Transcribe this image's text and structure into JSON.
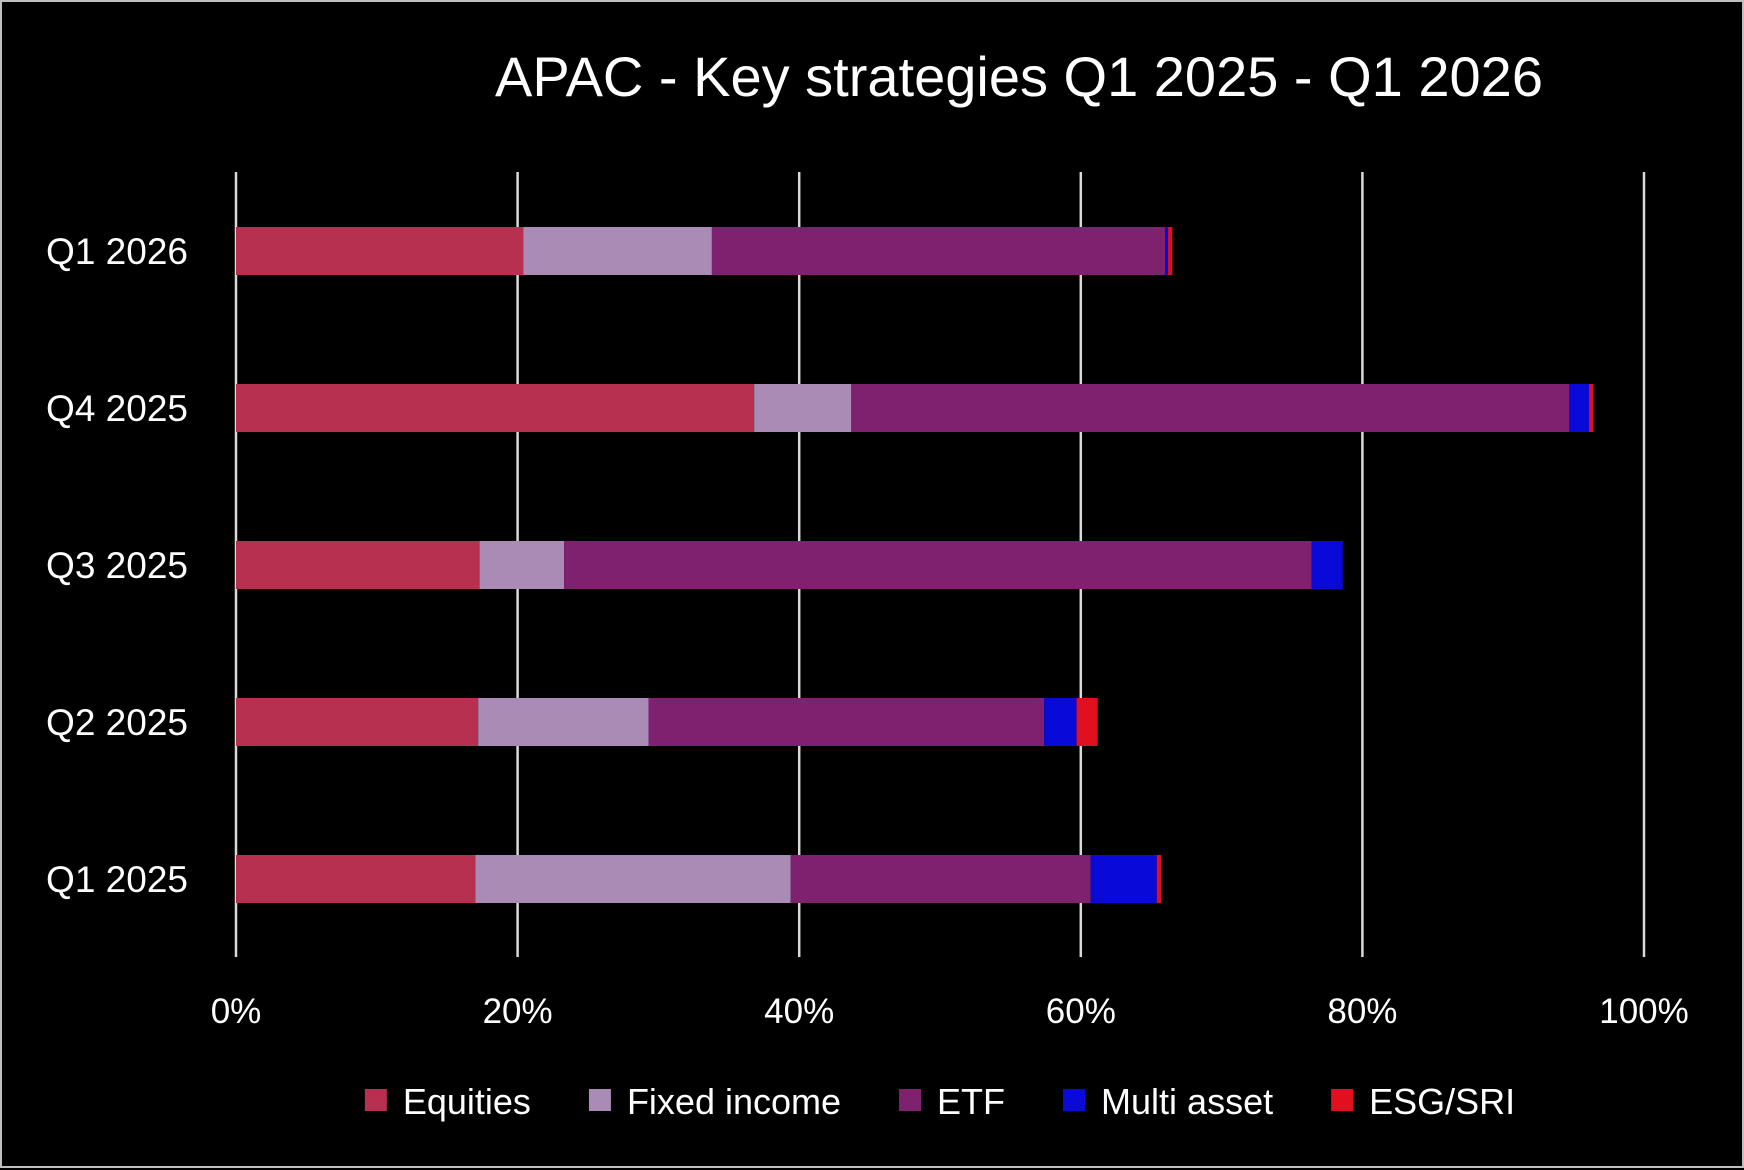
{
  "chart_data": {
    "type": "bar",
    "orientation": "horizontal",
    "stacked": true,
    "title": "APAC - Key strategies Q1 2025 - Q1 2026",
    "categories": [
      "Q1 2026",
      "Q4 2025",
      "Q3 2025",
      "Q2 2025",
      "Q1 2025"
    ],
    "series": [
      {
        "name": "Equities",
        "color": "#B83050",
        "values": [
          20.4,
          36.8,
          17.3,
          17.2,
          17.0
        ]
      },
      {
        "name": "Fixed income",
        "color": "#A98BB5",
        "values": [
          13.4,
          6.9,
          6.0,
          12.1,
          22.4
        ]
      },
      {
        "name": "ETF",
        "color": "#7E2270",
        "values": [
          32.2,
          51.0,
          53.1,
          28.1,
          21.3
        ]
      },
      {
        "name": "Multi asset",
        "color": "#0A0AD8",
        "values": [
          0.2,
          1.4,
          2.2,
          2.3,
          4.7
        ]
      },
      {
        "name": "ESG/SRI",
        "color": "#E0101E",
        "values": [
          0.3,
          0.3,
          0.0,
          1.5,
          0.3
        ]
      }
    ],
    "x_axis": {
      "min": 0,
      "max": 100,
      "ticks": [
        0,
        20,
        40,
        60,
        80,
        100
      ],
      "tick_labels": [
        "0%",
        "20%",
        "40%",
        "60%",
        "80%",
        "100%"
      ]
    },
    "grid": true,
    "legend_position": "bottom"
  }
}
